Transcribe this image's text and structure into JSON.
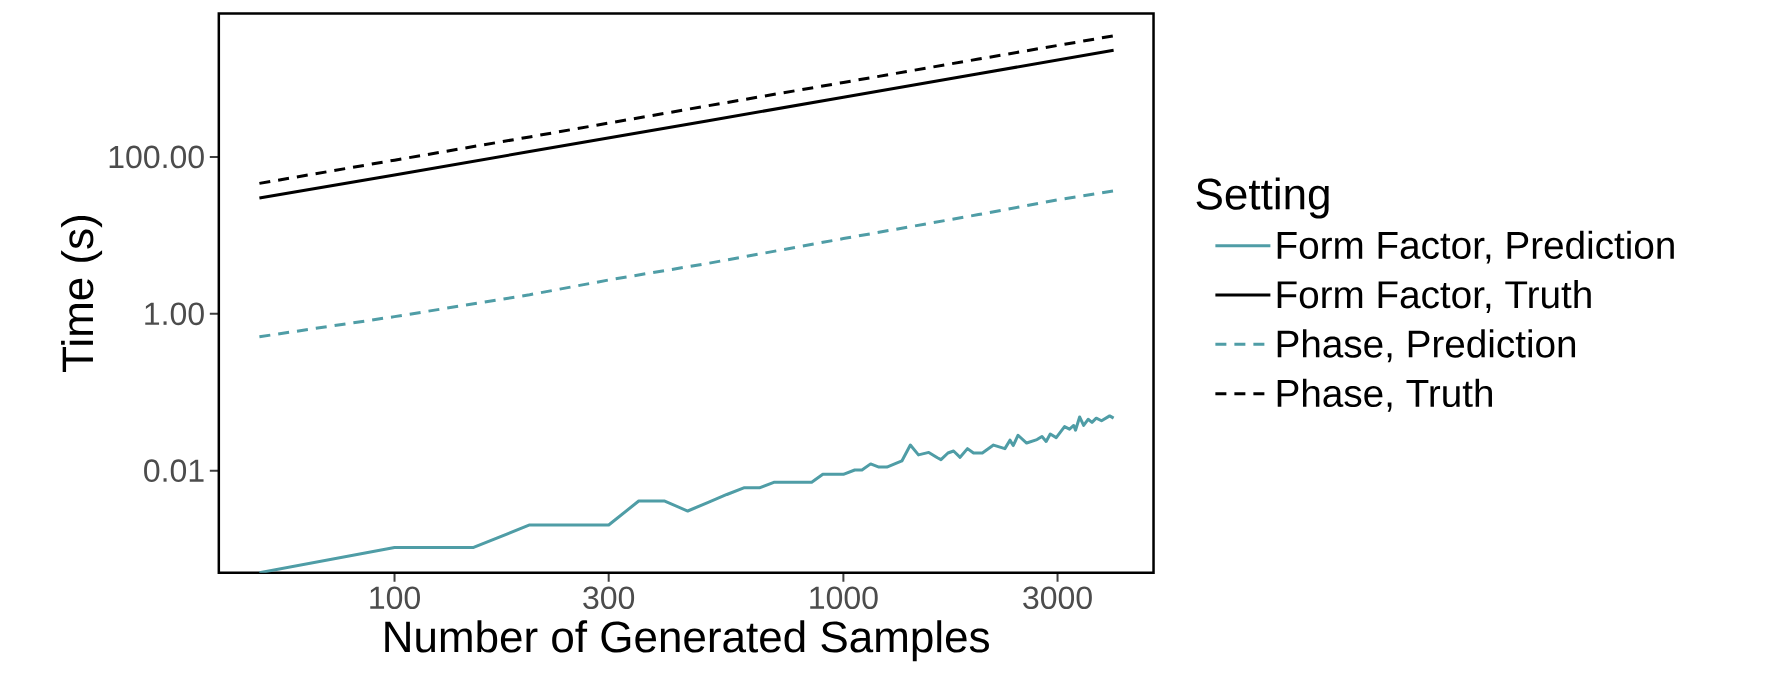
{
  "chart_data": {
    "type": "line",
    "xlabel": "Number of Generated Samples",
    "ylabel": "Time (s)",
    "legend_title": "Setting",
    "legend": "right",
    "log": "xy",
    "grid": false,
    "marker": "none",
    "xlim": [
      40.6,
      4909
    ],
    "ylim": [
      0.0005,
      6760
    ],
    "xticks": [
      100,
      300,
      1000,
      3000
    ],
    "yticks": [
      0.01,
      {
        "value": 1,
        "label": "1.00"
      },
      {
        "value": 100,
        "label": "100.00"
      }
    ],
    "series": [
      {
        "name": "Form Factor, Prediction",
        "color": "#4f9da6",
        "line_style": "solid",
        "x": [
          50,
          100,
          150,
          200,
          300,
          350,
          400,
          450,
          500,
          550,
          600,
          650,
          700,
          850,
          900,
          1000,
          1060,
          1100,
          1150,
          1200,
          1250,
          1350,
          1410,
          1470,
          1550,
          1620,
          1650,
          1710,
          1760,
          1820,
          1890,
          1950,
          2040,
          2160,
          2290,
          2350,
          2390,
          2450,
          2560,
          2700,
          2770,
          2830,
          2890,
          2980,
          3110,
          3190,
          3260,
          3290,
          3360,
          3430,
          3510,
          3580,
          3660,
          3760,
          3920,
          4000
        ],
        "values": [
          0.0005,
          0.00105,
          0.00105,
          0.00203,
          0.00203,
          0.0041,
          0.0041,
          0.00306,
          0.00394,
          0.00497,
          0.00605,
          0.00605,
          0.00711,
          0.00711,
          0.00898,
          0.00898,
          0.0102,
          0.0102,
          0.0122,
          0.0111,
          0.0111,
          0.0133,
          0.0212,
          0.0159,
          0.0171,
          0.0146,
          0.0138,
          0.0168,
          0.0178,
          0.0148,
          0.0191,
          0.0168,
          0.0168,
          0.0212,
          0.0191,
          0.0245,
          0.0209,
          0.0283,
          0.0225,
          0.0249,
          0.0273,
          0.0236,
          0.0293,
          0.0264,
          0.0364,
          0.0338,
          0.0377,
          0.0328,
          0.0484,
          0.0377,
          0.0452,
          0.0413,
          0.0467,
          0.0433,
          0.0499,
          0.0467
        ]
      },
      {
        "name": "Form Factor, Truth",
        "color": "#000000",
        "line_style": "solid",
        "x": [
          50,
          100,
          200,
          500,
          1000,
          2000,
          4000
        ],
        "values": [
          30,
          59,
          117,
          290,
          575,
          1150,
          2290
        ]
      },
      {
        "name": "Phase, Prediction",
        "color": "#4f9da6",
        "line_style": "dashed",
        "x": [
          50,
          100,
          200,
          300,
          500,
          1000,
          2000,
          3000,
          4000
        ],
        "values": [
          0.51,
          0.92,
          1.75,
          2.7,
          4.4,
          9.1,
          18.4,
          28.4,
          36.8
        ]
      },
      {
        "name": "Phase, Truth",
        "color": "#000000",
        "line_style": "dashed",
        "x": [
          50,
          100,
          200,
          500,
          1000,
          2000,
          4000
        ],
        "values": [
          46,
          91,
          180,
          450,
          890,
          1770,
          3500
        ]
      }
    ]
  }
}
